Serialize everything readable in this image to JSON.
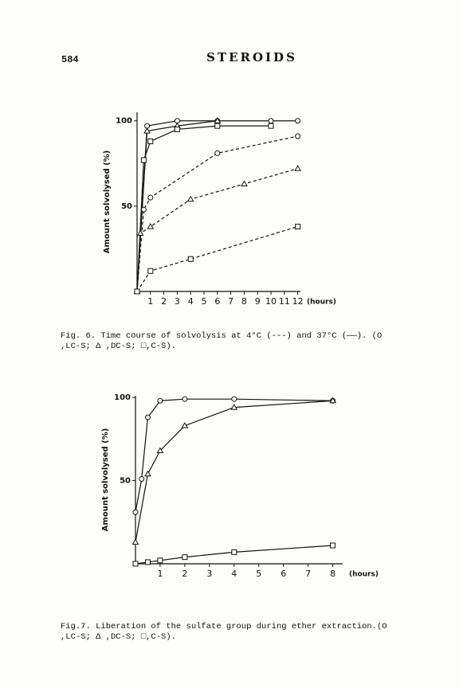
{
  "page_number": "584",
  "journal": "STEROIDS",
  "chart_data": [
    {
      "type": "line",
      "ylabel": "Amount solvolysed (%)",
      "xlabel": "(hours)",
      "xlim": [
        0,
        12.2
      ],
      "ylim": [
        0,
        105
      ],
      "xticks": [
        1,
        2,
        3,
        4,
        5,
        6,
        7,
        8,
        9,
        10,
        11,
        12
      ],
      "yticks": [
        50,
        100
      ],
      "series": [
        {
          "color": "#111",
          "marker": "circle",
          "dash": false,
          "x": [
            0,
            0.75,
            3,
            6,
            10,
            12
          ],
          "values": [
            0,
            97,
            100,
            100,
            100,
            100
          ]
        },
        {
          "color": "#111",
          "marker": "triangle",
          "dash": false,
          "x": [
            0,
            0.75,
            3,
            6
          ],
          "values": [
            0,
            94,
            97,
            100
          ]
        },
        {
          "color": "#111",
          "marker": "square",
          "dash": false,
          "x": [
            0,
            0.5,
            1,
            3,
            6,
            10
          ],
          "values": [
            0,
            77,
            88,
            95,
            97,
            97
          ]
        },
        {
          "color": "#111",
          "marker": "circle",
          "dash": true,
          "x": [
            0,
            0.5,
            1,
            6,
            12
          ],
          "values": [
            0,
            48,
            55,
            81,
            91
          ]
        },
        {
          "color": "#111",
          "marker": "triangle",
          "dash": true,
          "x": [
            0,
            0.25,
            1,
            4,
            8,
            12
          ],
          "values": [
            0,
            34,
            38,
            54,
            63,
            72
          ]
        },
        {
          "color": "#111",
          "marker": "square",
          "dash": true,
          "x": [
            0,
            1,
            4,
            12
          ],
          "values": [
            0,
            12,
            19,
            38
          ]
        }
      ],
      "caption": [
        "Fig. 6.  Time course of solvolysis at 4°C (---) and 37°C (——). (O",
        ",LC-S; Δ ,DC-S; □,C-S)."
      ]
    },
    {
      "type": "line",
      "ylabel": "Amount solvolysed (%)",
      "xlabel": "(hours)",
      "xlim": [
        0,
        8.4
      ],
      "ylim": [
        0,
        101
      ],
      "xticks": [
        1,
        2,
        3,
        4,
        5,
        6,
        7,
        8
      ],
      "yticks": [
        50,
        100
      ],
      "series": [
        {
          "color": "#111",
          "marker": "circle",
          "dash": false,
          "x": [
            0,
            0.25,
            0.5,
            1,
            2,
            4,
            8
          ],
          "values": [
            31,
            51,
            88,
            98,
            99,
            99,
            98
          ]
        },
        {
          "color": "#111",
          "marker": "triangle",
          "dash": false,
          "x": [
            0,
            0.5,
            1,
            2,
            4,
            8
          ],
          "values": [
            13,
            54,
            68,
            83,
            94,
            98
          ]
        },
        {
          "color": "#111",
          "marker": "square",
          "dash": false,
          "x": [
            0,
            0.5,
            1,
            2,
            4,
            8
          ],
          "values": [
            0,
            1,
            2,
            4,
            7,
            11
          ]
        }
      ],
      "caption": [
        "Fig.7.  Liberation of the sulfate group during ether extraction.(O",
        ",LC-S; Δ ,DC-S; □,C-S)."
      ]
    }
  ]
}
